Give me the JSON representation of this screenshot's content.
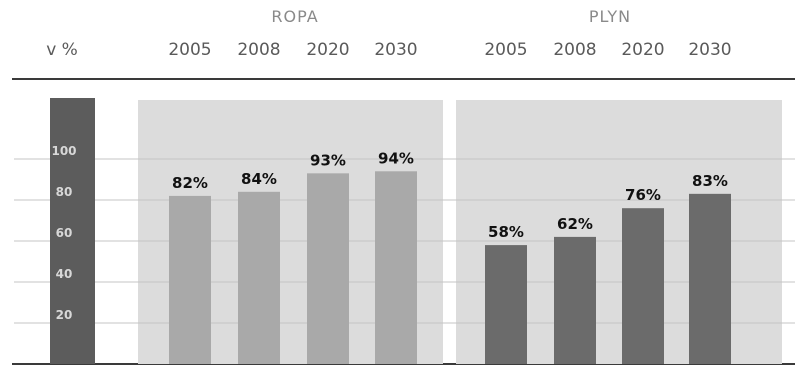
{
  "chart_data": {
    "type": "bar",
    "unit_label": "v %",
    "ylim": [
      0,
      110
    ],
    "yticks": [
      100,
      80,
      60,
      40,
      20
    ],
    "groups": [
      {
        "name": "ROPA",
        "categories": [
          "2005",
          "2008",
          "2020",
          "2030"
        ],
        "values": [
          82,
          84,
          93,
          94
        ],
        "labels": [
          "82%",
          "84%",
          "93%",
          "94%"
        ]
      },
      {
        "name": "PLYN",
        "categories": [
          "2005",
          "2008",
          "2020",
          "2030"
        ],
        "values": [
          58,
          62,
          76,
          83
        ],
        "labels": [
          "58%",
          "62%",
          "76%",
          "83%"
        ]
      }
    ],
    "grid": true,
    "colors": {
      "axis_column": "#5c5c5c",
      "group_background": "#dcdcdc",
      "ropa_bars": "#a9a9a9",
      "plyn_bars": "#6b6b6b",
      "gridline": "#c4c4c4",
      "rule": "#3a3a3a"
    }
  }
}
